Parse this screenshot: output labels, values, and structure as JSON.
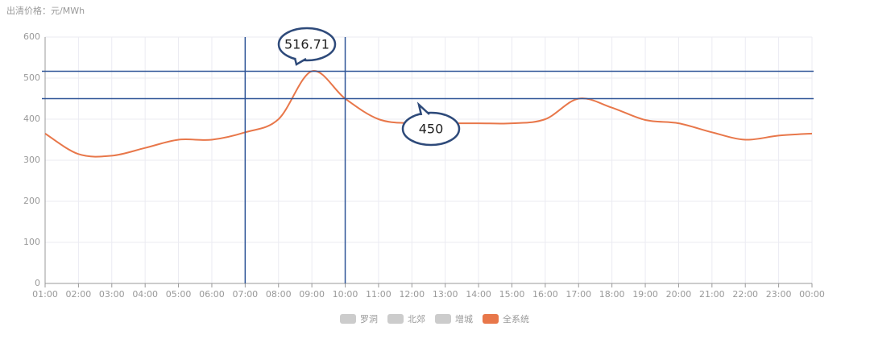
{
  "chart_data": {
    "type": "line",
    "y_axis_label": "出清价格：元/MWh",
    "categories": [
      "01:00",
      "02:00",
      "03:00",
      "04:00",
      "05:00",
      "06:00",
      "07:00",
      "08:00",
      "09:00",
      "10:00",
      "11:00",
      "12:00",
      "13:00",
      "14:00",
      "15:00",
      "16:00",
      "17:00",
      "18:00",
      "19:00",
      "20:00",
      "21:00",
      "22:00",
      "23:00",
      "00:00"
    ],
    "series": [
      {
        "name": "全系统",
        "color": "#e8774a",
        "values": [
          365,
          315,
          311,
          330,
          350,
          350,
          368,
          400,
          516.71,
          450,
          400,
          390,
          390,
          390,
          390,
          400,
          450,
          428,
          398,
          390,
          368,
          350,
          360,
          365
        ]
      }
    ],
    "hidden_legend": [
      {
        "name": "罗洞",
        "color": "#cccccc"
      },
      {
        "name": "北郊",
        "color": "#cccccc"
      },
      {
        "name": "增城",
        "color": "#cccccc"
      }
    ],
    "ylim": [
      0,
      600
    ],
    "yticks": [
      0,
      100,
      200,
      300,
      400,
      500,
      600
    ],
    "grid": true,
    "reference_lines": [
      516.71,
      450
    ],
    "marker_categories": [
      "07:00",
      "10:00"
    ]
  }
}
